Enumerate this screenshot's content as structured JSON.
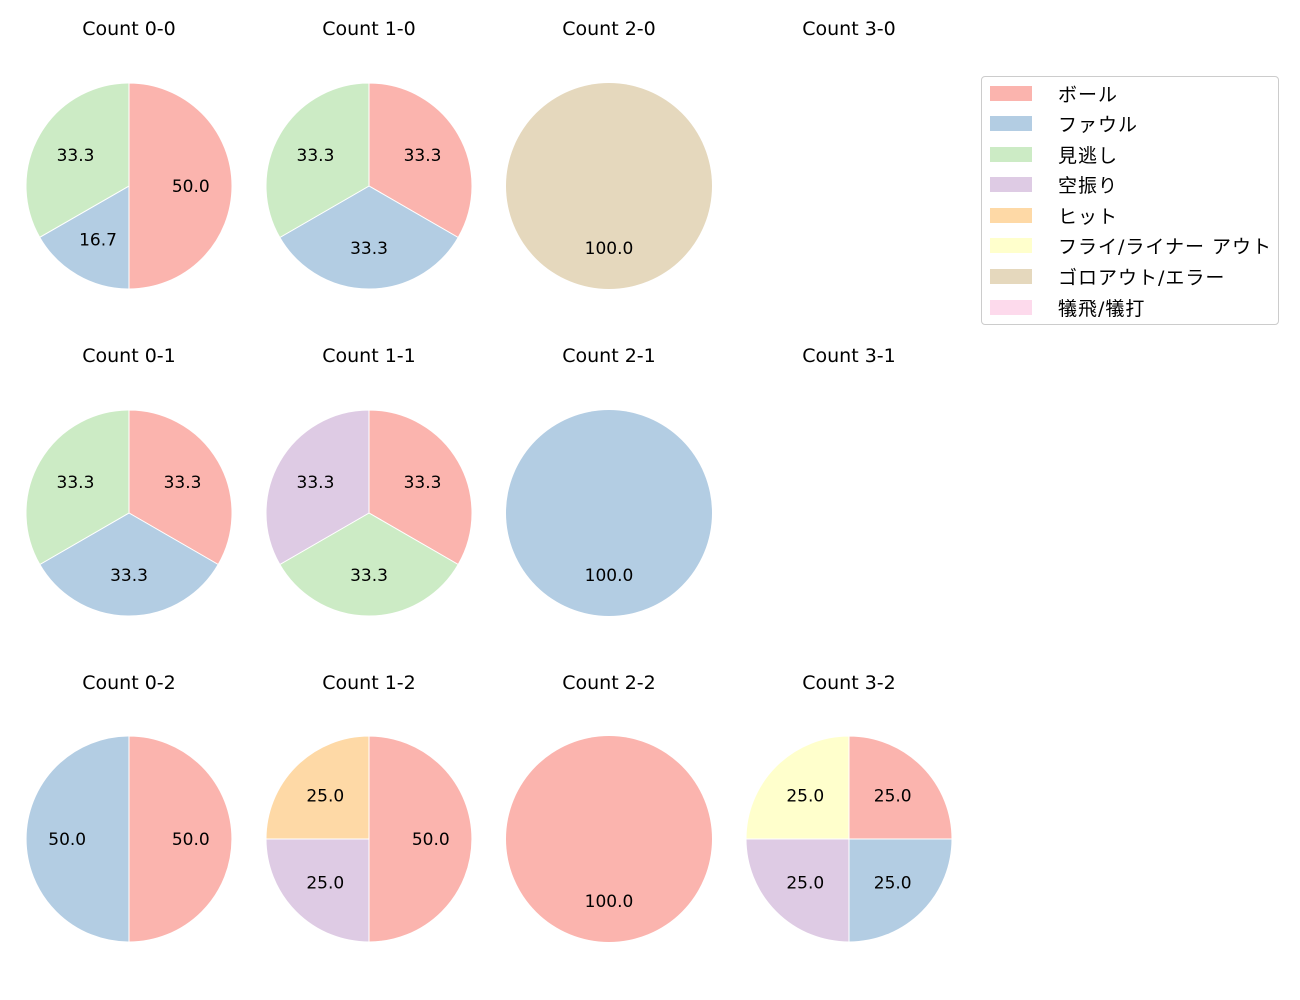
{
  "colors": {
    "ボール": "#fbb4ae",
    "ファウル": "#b3cde3",
    "見逃し": "#ccebc5",
    "空振り": "#decbe4",
    "ヒット": "#fed9a6",
    "フライ/ライナー アウト": "#ffffcc",
    "ゴロアウト/エラー": "#e5d8bd",
    "犠飛/犠打": "#fddaec"
  },
  "legend": {
    "items": [
      {
        "label": "ボール",
        "color": "#fbb4ae"
      },
      {
        "label": "ファウル",
        "color": "#b3cde3"
      },
      {
        "label": "見逃し",
        "color": "#ccebc5"
      },
      {
        "label": "空振り",
        "color": "#decbe4"
      },
      {
        "label": "ヒット",
        "color": "#fed9a6"
      },
      {
        "label": "フライ/ライナー アウト",
        "color": "#ffffcc"
      },
      {
        "label": "ゴロアウト/エラー",
        "color": "#e5d8bd"
      },
      {
        "label": "犠飛/犠打",
        "color": "#fddaec"
      }
    ]
  },
  "chart_data": {
    "type": "pie",
    "layout": {
      "rows": 3,
      "cols": 4,
      "legend_position": "upper right",
      "start_angle": 90,
      "direction": "clockwise",
      "label_format": "%.1f"
    },
    "charts": [
      {
        "title": "Count 0-0",
        "row": 0,
        "col": 0,
        "slices": [
          {
            "category": "ボール",
            "value": 50.0
          },
          {
            "category": "ファウル",
            "value": 16.7
          },
          {
            "category": "見逃し",
            "value": 33.3
          }
        ]
      },
      {
        "title": "Count 1-0",
        "row": 0,
        "col": 1,
        "slices": [
          {
            "category": "ボール",
            "value": 33.3
          },
          {
            "category": "ファウル",
            "value": 33.3
          },
          {
            "category": "見逃し",
            "value": 33.3
          }
        ]
      },
      {
        "title": "Count 2-0",
        "row": 0,
        "col": 2,
        "slices": [
          {
            "category": "ゴロアウト/エラー",
            "value": 100.0
          }
        ]
      },
      {
        "title": "Count 3-0",
        "row": 0,
        "col": 3,
        "slices": []
      },
      {
        "title": "Count 0-1",
        "row": 1,
        "col": 0,
        "slices": [
          {
            "category": "ボール",
            "value": 33.3
          },
          {
            "category": "ファウル",
            "value": 33.3
          },
          {
            "category": "見逃し",
            "value": 33.3
          }
        ]
      },
      {
        "title": "Count 1-1",
        "row": 1,
        "col": 1,
        "slices": [
          {
            "category": "ボール",
            "value": 33.3
          },
          {
            "category": "見逃し",
            "value": 33.3
          },
          {
            "category": "空振り",
            "value": 33.3
          }
        ]
      },
      {
        "title": "Count 2-1",
        "row": 1,
        "col": 2,
        "slices": [
          {
            "category": "ファウル",
            "value": 100.0
          }
        ]
      },
      {
        "title": "Count 3-1",
        "row": 1,
        "col": 3,
        "slices": []
      },
      {
        "title": "Count 0-2",
        "row": 2,
        "col": 0,
        "slices": [
          {
            "category": "ボール",
            "value": 50.0
          },
          {
            "category": "ファウル",
            "value": 50.0
          }
        ]
      },
      {
        "title": "Count 1-2",
        "row": 2,
        "col": 1,
        "slices": [
          {
            "category": "ボール",
            "value": 50.0
          },
          {
            "category": "空振り",
            "value": 25.0
          },
          {
            "category": "ヒット",
            "value": 25.0
          }
        ]
      },
      {
        "title": "Count 2-2",
        "row": 2,
        "col": 2,
        "slices": [
          {
            "category": "ボール",
            "value": 100.0
          }
        ]
      },
      {
        "title": "Count 3-2",
        "row": 2,
        "col": 3,
        "slices": [
          {
            "category": "ボール",
            "value": 25.0
          },
          {
            "category": "ファウル",
            "value": 25.0
          },
          {
            "category": "空振り",
            "value": 25.0
          },
          {
            "category": "フライ/ライナー アウト",
            "value": 25.0
          }
        ]
      }
    ]
  }
}
